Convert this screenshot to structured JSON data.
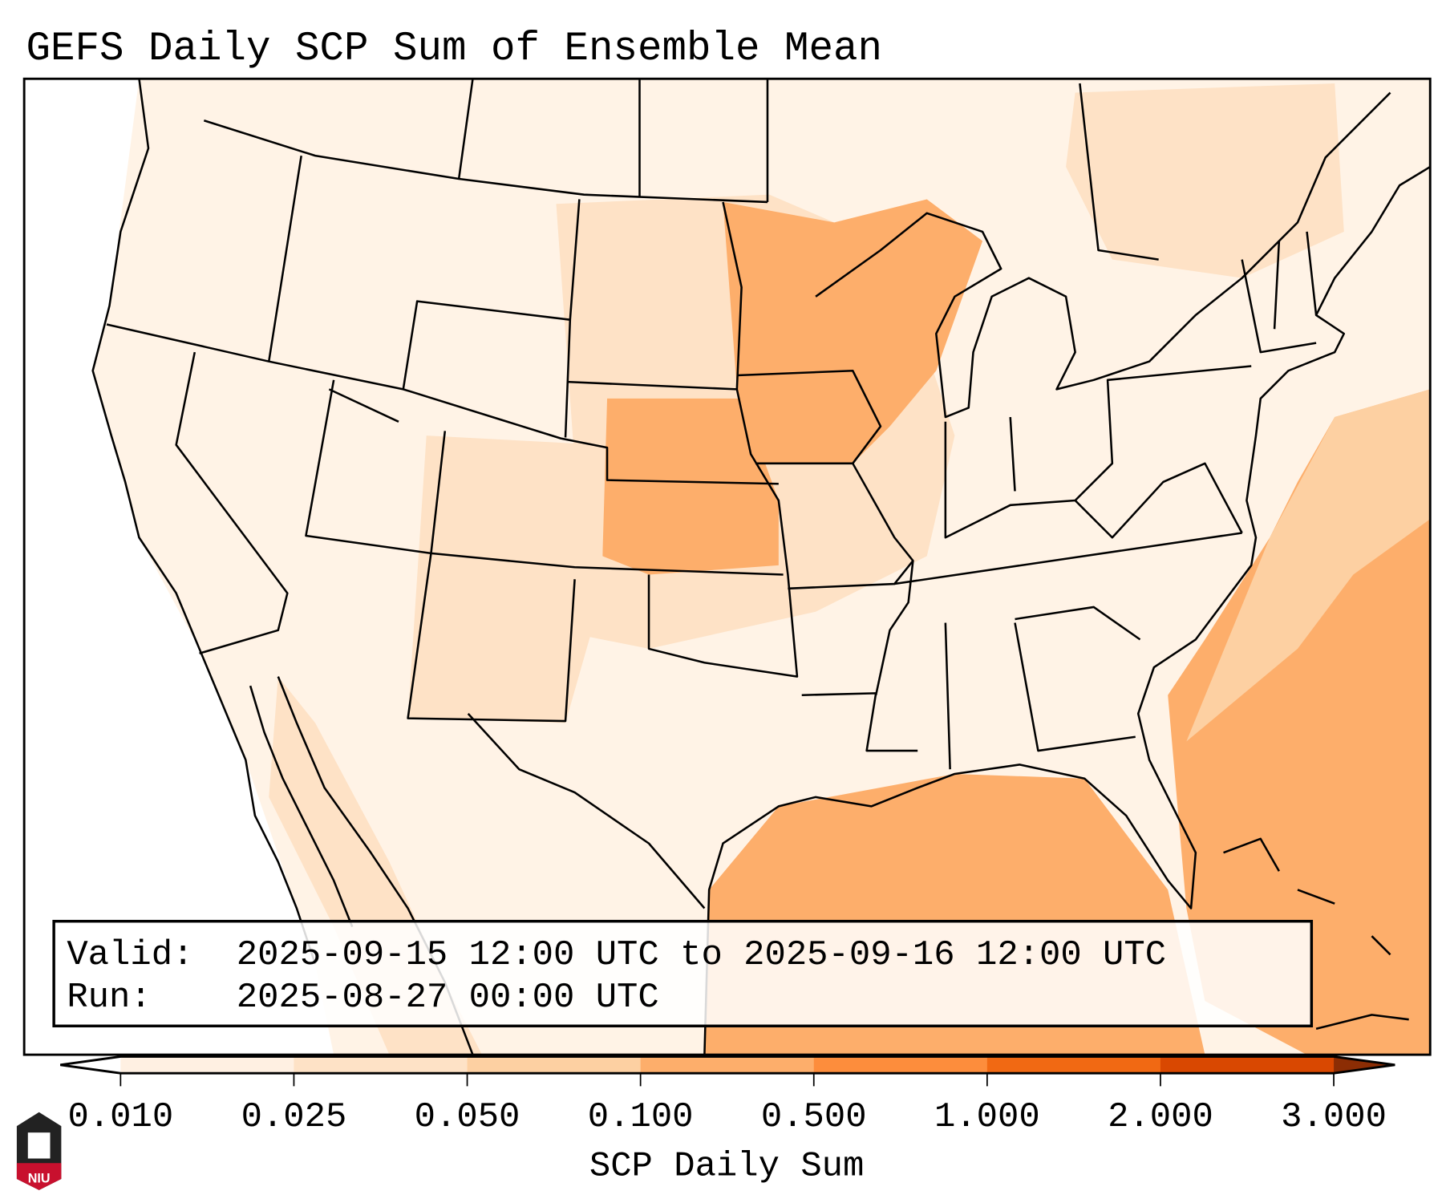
{
  "chart_data": {
    "type": "heatmap",
    "title": "GEFS Daily SCP Sum of Ensemble Mean",
    "colorbar": {
      "label": "SCP Daily Sum",
      "ticks": [
        "0.010",
        "0.025",
        "0.050",
        "0.100",
        "0.500",
        "1.000",
        "2.000",
        "3.000"
      ],
      "levels": [
        0.01,
        0.025,
        0.05,
        0.1,
        0.5,
        1.0,
        2.0,
        3.0
      ],
      "colors": [
        "#ffffff",
        "#fff0e2",
        "#fee2c6",
        "#fdd0a2",
        "#fdae6b",
        "#fd8d3c",
        "#f16913",
        "#d94801",
        "#8c2d04"
      ],
      "extend": "both"
    },
    "regions": [
      {
        "name": "Atlantic Ocean east of Southeast coast",
        "range": "0.100-0.500"
      },
      {
        "name": "Gulf of Mexico",
        "range": "0.100-0.500"
      },
      {
        "name": "Minnesota / Wisconsin / Iowa",
        "range": "0.100-0.500"
      },
      {
        "name": "Nebraska / Kansas",
        "range": "0.050-0.500"
      },
      {
        "name": "Western US",
        "range": "0.010-0.050"
      }
    ]
  },
  "info": {
    "valid_label": "Valid:",
    "valid_value": "2025-09-15 12:00 UTC to 2025-09-16 12:00 UTC",
    "run_label": "Run:",
    "run_value": "2025-08-27 00:00 UTC"
  },
  "logo": {
    "text": "NIU"
  }
}
